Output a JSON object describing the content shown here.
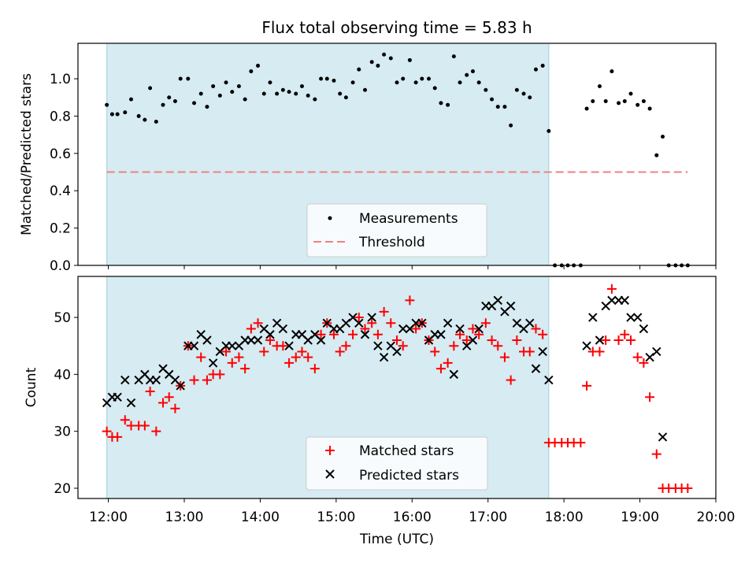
{
  "chart_data": [
    {
      "type": "scatter",
      "title": "Flux total observing time = 5.83 h",
      "xlabel": "",
      "ylabel": "Matched/Predicted stars",
      "ylim": [
        0,
        1.19
      ],
      "yticks": [
        0.0,
        0.2,
        0.4,
        0.6,
        0.8,
        1.0
      ],
      "ytick_labels": [
        "0.0",
        "0.2",
        "0.4",
        "0.6",
        "0.8",
        "1.0"
      ],
      "xlim": [
        11.6,
        20.0
      ],
      "shaded_span": [
        11.98,
        17.8
      ],
      "threshold": {
        "value": 0.5,
        "x_range": [
          11.98,
          19.63
        ],
        "color": "#f08080"
      },
      "legend": {
        "position": "bottom-center",
        "entries": [
          "Measurements",
          "Threshold"
        ]
      },
      "series": [
        {
          "name": "Measurements",
          "color": "#000000",
          "x": [
            11.98,
            12.05,
            12.12,
            12.22,
            12.3,
            12.4,
            12.48,
            12.55,
            12.63,
            12.72,
            12.8,
            12.88,
            12.95,
            13.05,
            13.13,
            13.22,
            13.3,
            13.38,
            13.47,
            13.55,
            13.63,
            13.72,
            13.8,
            13.88,
            13.97,
            14.05,
            14.13,
            14.22,
            14.3,
            14.38,
            14.47,
            14.55,
            14.63,
            14.72,
            14.8,
            14.88,
            14.97,
            15.05,
            15.13,
            15.22,
            15.3,
            15.38,
            15.47,
            15.55,
            15.63,
            15.72,
            15.8,
            15.88,
            15.97,
            16.05,
            16.13,
            16.22,
            16.3,
            16.38,
            16.47,
            16.55,
            16.63,
            16.72,
            16.8,
            16.88,
            16.97,
            17.05,
            17.13,
            17.22,
            17.3,
            17.38,
            17.47,
            17.55,
            17.63,
            17.72,
            17.8,
            17.88,
            17.97,
            18.05,
            18.13,
            18.22,
            18.3,
            18.38,
            18.47,
            18.55,
            18.63,
            18.72,
            18.8,
            18.88,
            18.97,
            19.05,
            19.13,
            19.22,
            19.3,
            19.38,
            19.47,
            19.55,
            19.63
          ],
          "y": [
            0.86,
            0.81,
            0.81,
            0.82,
            0.89,
            0.8,
            0.78,
            0.95,
            0.77,
            0.86,
            0.9,
            0.88,
            1.0,
            1.0,
            0.87,
            0.92,
            0.85,
            0.96,
            0.91,
            0.98,
            0.93,
            0.96,
            0.89,
            1.04,
            1.07,
            0.92,
            0.98,
            0.92,
            0.94,
            0.93,
            0.92,
            0.96,
            0.91,
            0.89,
            1.0,
            1.0,
            0.99,
            0.92,
            0.9,
            0.98,
            1.05,
            0.94,
            1.09,
            1.07,
            1.13,
            1.11,
            0.98,
            1.0,
            1.1,
            0.98,
            1.0,
            1.0,
            0.95,
            0.87,
            0.86,
            1.12,
            0.98,
            1.02,
            1.04,
            0.98,
            0.94,
            0.89,
            0.85,
            0.85,
            0.75,
            0.94,
            0.92,
            0.9,
            1.05,
            1.07,
            0.72,
            0.0,
            0.0,
            0.0,
            0.0,
            0.0,
            0.84,
            0.88,
            0.96,
            0.88,
            1.04,
            0.87,
            0.88,
            0.92,
            0.86,
            0.88,
            0.84,
            0.59,
            0.69,
            0.0,
            0.0,
            0.0,
            0.0
          ]
        }
      ]
    },
    {
      "type": "scatter",
      "title": "",
      "xlabel": "Time (UTC)",
      "ylabel": "Count",
      "ylim": [
        18.2,
        57.2
      ],
      "yticks": [
        20,
        30,
        40,
        50
      ],
      "ytick_labels": [
        "20",
        "30",
        "40",
        "50"
      ],
      "xlim": [
        11.6,
        20.0
      ],
      "xticks": [
        12,
        13,
        14,
        15,
        16,
        17,
        18,
        19,
        20
      ],
      "xtick_labels": [
        "12:00",
        "13:00",
        "14:00",
        "15:00",
        "16:00",
        "17:00",
        "18:00",
        "19:00",
        "20:00"
      ],
      "shaded_span": [
        11.98,
        17.8
      ],
      "legend": {
        "position": "bottom-center",
        "entries": [
          "Matched stars",
          "Predicted stars"
        ]
      },
      "series": [
        {
          "name": "Matched stars",
          "marker": "+",
          "color": "#ff0000",
          "x": [
            11.98,
            12.05,
            12.12,
            12.22,
            12.3,
            12.4,
            12.48,
            12.55,
            12.63,
            12.72,
            12.8,
            12.88,
            12.95,
            13.05,
            13.13,
            13.22,
            13.3,
            13.38,
            13.47,
            13.55,
            13.63,
            13.72,
            13.8,
            13.88,
            13.97,
            14.05,
            14.13,
            14.22,
            14.3,
            14.38,
            14.47,
            14.55,
            14.63,
            14.72,
            14.8,
            14.88,
            14.97,
            15.05,
            15.13,
            15.22,
            15.3,
            15.38,
            15.47,
            15.55,
            15.63,
            15.72,
            15.8,
            15.88,
            15.97,
            16.05,
            16.13,
            16.22,
            16.3,
            16.38,
            16.47,
            16.55,
            16.63,
            16.72,
            16.8,
            16.88,
            16.97,
            17.05,
            17.13,
            17.22,
            17.3,
            17.38,
            17.47,
            17.55,
            17.63,
            17.72,
            17.8,
            17.88,
            17.97,
            18.05,
            18.13,
            18.22,
            18.3,
            18.38,
            18.47,
            18.55,
            18.63,
            18.72,
            18.8,
            18.88,
            18.97,
            19.05,
            19.13,
            19.22,
            19.3,
            19.38,
            19.47,
            19.55,
            19.63
          ],
          "y": [
            30,
            29,
            29,
            32,
            31,
            31,
            31,
            37,
            30,
            35,
            36,
            34,
            38,
            45,
            39,
            43,
            39,
            40,
            40,
            44,
            42,
            43,
            41,
            48,
            49,
            44,
            46,
            45,
            45,
            42,
            43,
            44,
            43,
            41,
            47,
            49,
            47,
            44,
            45,
            47,
            50,
            48,
            49,
            47,
            51,
            49,
            46,
            45,
            53,
            48,
            49,
            46,
            44,
            41,
            42,
            45,
            47,
            46,
            48,
            47,
            49,
            46,
            45,
            43,
            39,
            46,
            44,
            44,
            48,
            47,
            28,
            28,
            28,
            28,
            28,
            28,
            38,
            44,
            44,
            46,
            55,
            46,
            47,
            46,
            43,
            42,
            36,
            26,
            20,
            20,
            20,
            20,
            20
          ]
        },
        {
          "name": "Predicted stars",
          "marker": "x",
          "color": "#000000",
          "x": [
            11.98,
            12.05,
            12.12,
            12.22,
            12.3,
            12.4,
            12.48,
            12.55,
            12.63,
            12.72,
            12.8,
            12.88,
            12.95,
            13.05,
            13.13,
            13.22,
            13.3,
            13.38,
            13.47,
            13.55,
            13.63,
            13.72,
            13.8,
            13.88,
            13.97,
            14.05,
            14.13,
            14.22,
            14.3,
            14.38,
            14.47,
            14.55,
            14.63,
            14.72,
            14.8,
            14.88,
            14.97,
            15.05,
            15.13,
            15.22,
            15.3,
            15.38,
            15.47,
            15.55,
            15.63,
            15.72,
            15.8,
            15.88,
            15.97,
            16.05,
            16.13,
            16.22,
            16.3,
            16.38,
            16.47,
            16.55,
            16.63,
            16.72,
            16.8,
            16.88,
            16.97,
            17.05,
            17.13,
            17.22,
            17.3,
            17.38,
            17.47,
            17.55,
            17.63,
            17.72,
            17.8,
            18.3,
            18.38,
            18.47,
            18.55,
            18.63,
            18.72,
            18.8,
            18.88,
            18.97,
            19.05,
            19.13,
            19.22,
            19.3
          ],
          "y": [
            35,
            36,
            36,
            39,
            35,
            39,
            40,
            39,
            39,
            41,
            40,
            39,
            38,
            45,
            45,
            47,
            46,
            42,
            44,
            45,
            45,
            45,
            46,
            46,
            46,
            48,
            47,
            49,
            48,
            45,
            47,
            47,
            46,
            47,
            46,
            49,
            48,
            48,
            49,
            50,
            49,
            47,
            50,
            45,
            43,
            45,
            44,
            48,
            48,
            49,
            49,
            46,
            47,
            47,
            49,
            40,
            48,
            45,
            46,
            48,
            52,
            52,
            53,
            51,
            52,
            49,
            48,
            49,
            41,
            44,
            39,
            45,
            50,
            46,
            52,
            53,
            53,
            53,
            50,
            50,
            48,
            43,
            44,
            29
          ]
        }
      ]
    }
  ]
}
